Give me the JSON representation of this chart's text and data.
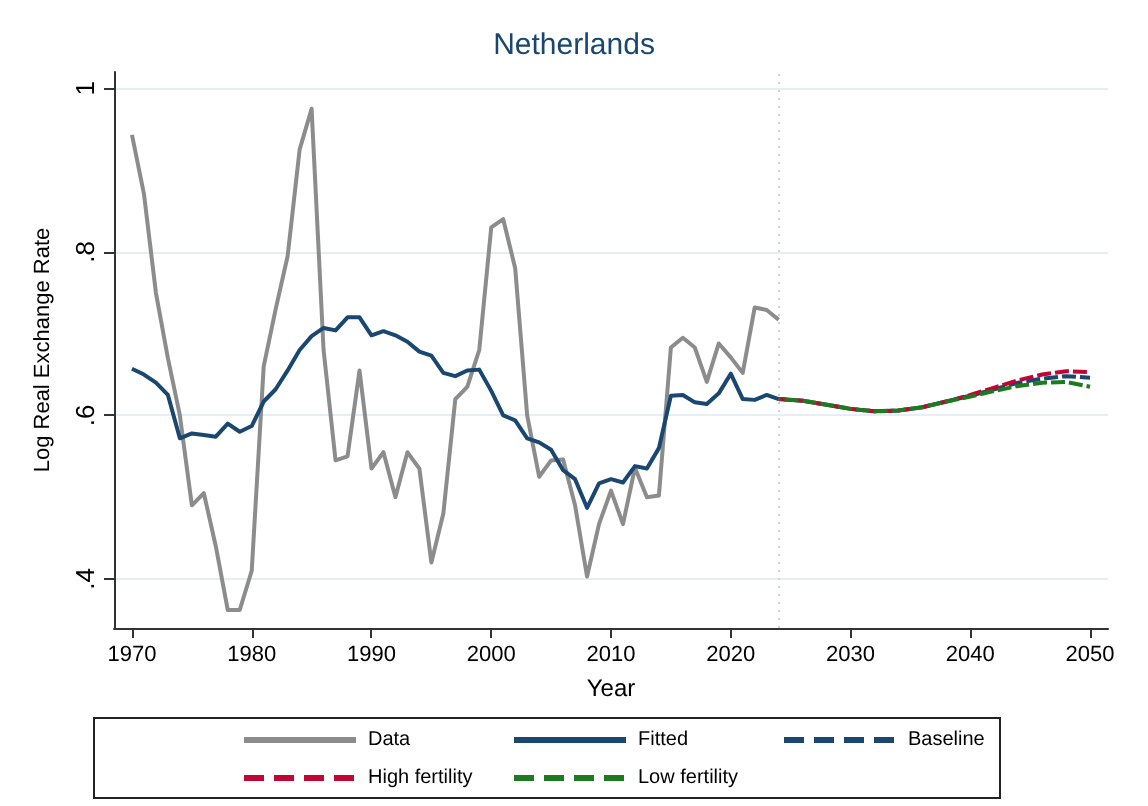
{
  "chart_data": {
    "type": "line",
    "title": "Netherlands",
    "xlabel": "Year",
    "ylabel": "Log Real Exchange Rate",
    "xlim": [
      1968.5,
      2051.5
    ],
    "ylim": [
      0.34,
      1.02
    ],
    "xticks": [
      1970,
      1980,
      1990,
      2000,
      2010,
      2020,
      2030,
      2040,
      2050
    ],
    "yticks": [
      {
        "value": 0.4,
        "label": ".4"
      },
      {
        "value": 0.6,
        "label": ".6"
      },
      {
        "value": 0.8,
        "label": ".8"
      },
      {
        "value": 1,
        "label": "1"
      }
    ],
    "grid": "y",
    "legend": "bottom",
    "marker": "none",
    "line_style": "solid",
    "ref_lines": [
      {
        "axis": "x",
        "value": 2024,
        "color": "#d0d0d0",
        "line_style": "dotted"
      }
    ],
    "series": [
      {
        "name": "Data",
        "color": "#8c8c8c",
        "x": [
          1970,
          1971,
          1972,
          1973,
          1974,
          1975,
          1976,
          1977,
          1978,
          1979,
          1980,
          1981,
          1982,
          1983,
          1984,
          1985,
          1986,
          1987,
          1988,
          1989,
          1990,
          1991,
          1992,
          1993,
          1994,
          1995,
          1996,
          1997,
          1998,
          1999,
          2000,
          2001,
          2002,
          2003,
          2004,
          2005,
          2006,
          2007,
          2008,
          2009,
          2010,
          2011,
          2012,
          2013,
          2014,
          2015,
          2016,
          2017,
          2018,
          2019,
          2020,
          2021,
          2022,
          2023,
          2024
        ],
        "values": [
          0.943,
          0.871,
          0.75,
          0.67,
          0.6,
          0.49,
          0.505,
          0.44,
          0.362,
          0.362,
          0.41,
          0.66,
          0.73,
          0.795,
          0.925,
          0.975,
          0.68,
          0.545,
          0.55,
          0.655,
          0.535,
          0.555,
          0.5,
          0.555,
          0.535,
          0.42,
          0.48,
          0.62,
          0.635,
          0.68,
          0.83,
          0.84,
          0.78,
          0.6,
          0.525,
          0.545,
          0.546,
          0.49,
          0.403,
          0.467,
          0.508,
          0.467,
          0.536,
          0.5,
          0.502,
          0.683,
          0.695,
          0.683,
          0.641,
          0.688,
          0.671,
          0.652,
          0.732,
          0.729,
          0.717
        ]
      },
      {
        "name": "Fitted",
        "color": "#1a476f",
        "x": [
          1970,
          1971,
          1972,
          1973,
          1974,
          1975,
          1976,
          1977,
          1978,
          1979,
          1980,
          1981,
          1982,
          1983,
          1984,
          1985,
          1986,
          1987,
          1988,
          1989,
          1990,
          1991,
          1992,
          1993,
          1994,
          1995,
          1996,
          1997,
          1998,
          1999,
          2000,
          2001,
          2002,
          2003,
          2004,
          2005,
          2006,
          2007,
          2008,
          2009,
          2010,
          2011,
          2012,
          2013,
          2014,
          2015,
          2016,
          2017,
          2018,
          2019,
          2020,
          2021,
          2022,
          2023,
          2024
        ],
        "values": [
          0.657,
          0.65,
          0.64,
          0.625,
          0.572,
          0.578,
          0.576,
          0.574,
          0.59,
          0.58,
          0.587,
          0.617,
          0.632,
          0.655,
          0.68,
          0.697,
          0.707,
          0.704,
          0.72,
          0.72,
          0.698,
          0.703,
          0.698,
          0.69,
          0.678,
          0.673,
          0.652,
          0.648,
          0.655,
          0.656,
          0.63,
          0.6,
          0.594,
          0.572,
          0.567,
          0.558,
          0.533,
          0.522,
          0.487,
          0.517,
          0.522,
          0.518,
          0.538,
          0.535,
          0.56,
          0.624,
          0.625,
          0.616,
          0.614,
          0.627,
          0.651,
          0.62,
          0.619,
          0.625,
          0.62
        ]
      },
      {
        "name": "Baseline",
        "color": "#1a476f",
        "line_style": "dashed",
        "x": [
          2024,
          2026,
          2028,
          2030,
          2032,
          2034,
          2036,
          2038,
          2040,
          2042,
          2044,
          2046,
          2048,
          2050
        ],
        "values": [
          0.62,
          0.618,
          0.613,
          0.608,
          0.605,
          0.606,
          0.61,
          0.617,
          0.624,
          0.632,
          0.64,
          0.645,
          0.648,
          0.646
        ]
      },
      {
        "name": "High fertility",
        "color": "#c10534",
        "line_style": "dashed",
        "x": [
          2024,
          2026,
          2028,
          2030,
          2032,
          2034,
          2036,
          2038,
          2040,
          2042,
          2044,
          2046,
          2048,
          2050
        ],
        "values": [
          0.62,
          0.618,
          0.613,
          0.608,
          0.605,
          0.606,
          0.61,
          0.617,
          0.625,
          0.634,
          0.643,
          0.65,
          0.654,
          0.653
        ]
      },
      {
        "name": "Low fertility",
        "color": "#1e7a1e",
        "line_style": "dashed",
        "x": [
          2024,
          2026,
          2028,
          2030,
          2032,
          2034,
          2036,
          2038,
          2040,
          2042,
          2044,
          2046,
          2048,
          2050
        ],
        "values": [
          0.62,
          0.618,
          0.613,
          0.608,
          0.605,
          0.606,
          0.61,
          0.617,
          0.623,
          0.63,
          0.636,
          0.64,
          0.641,
          0.635
        ]
      }
    ]
  }
}
